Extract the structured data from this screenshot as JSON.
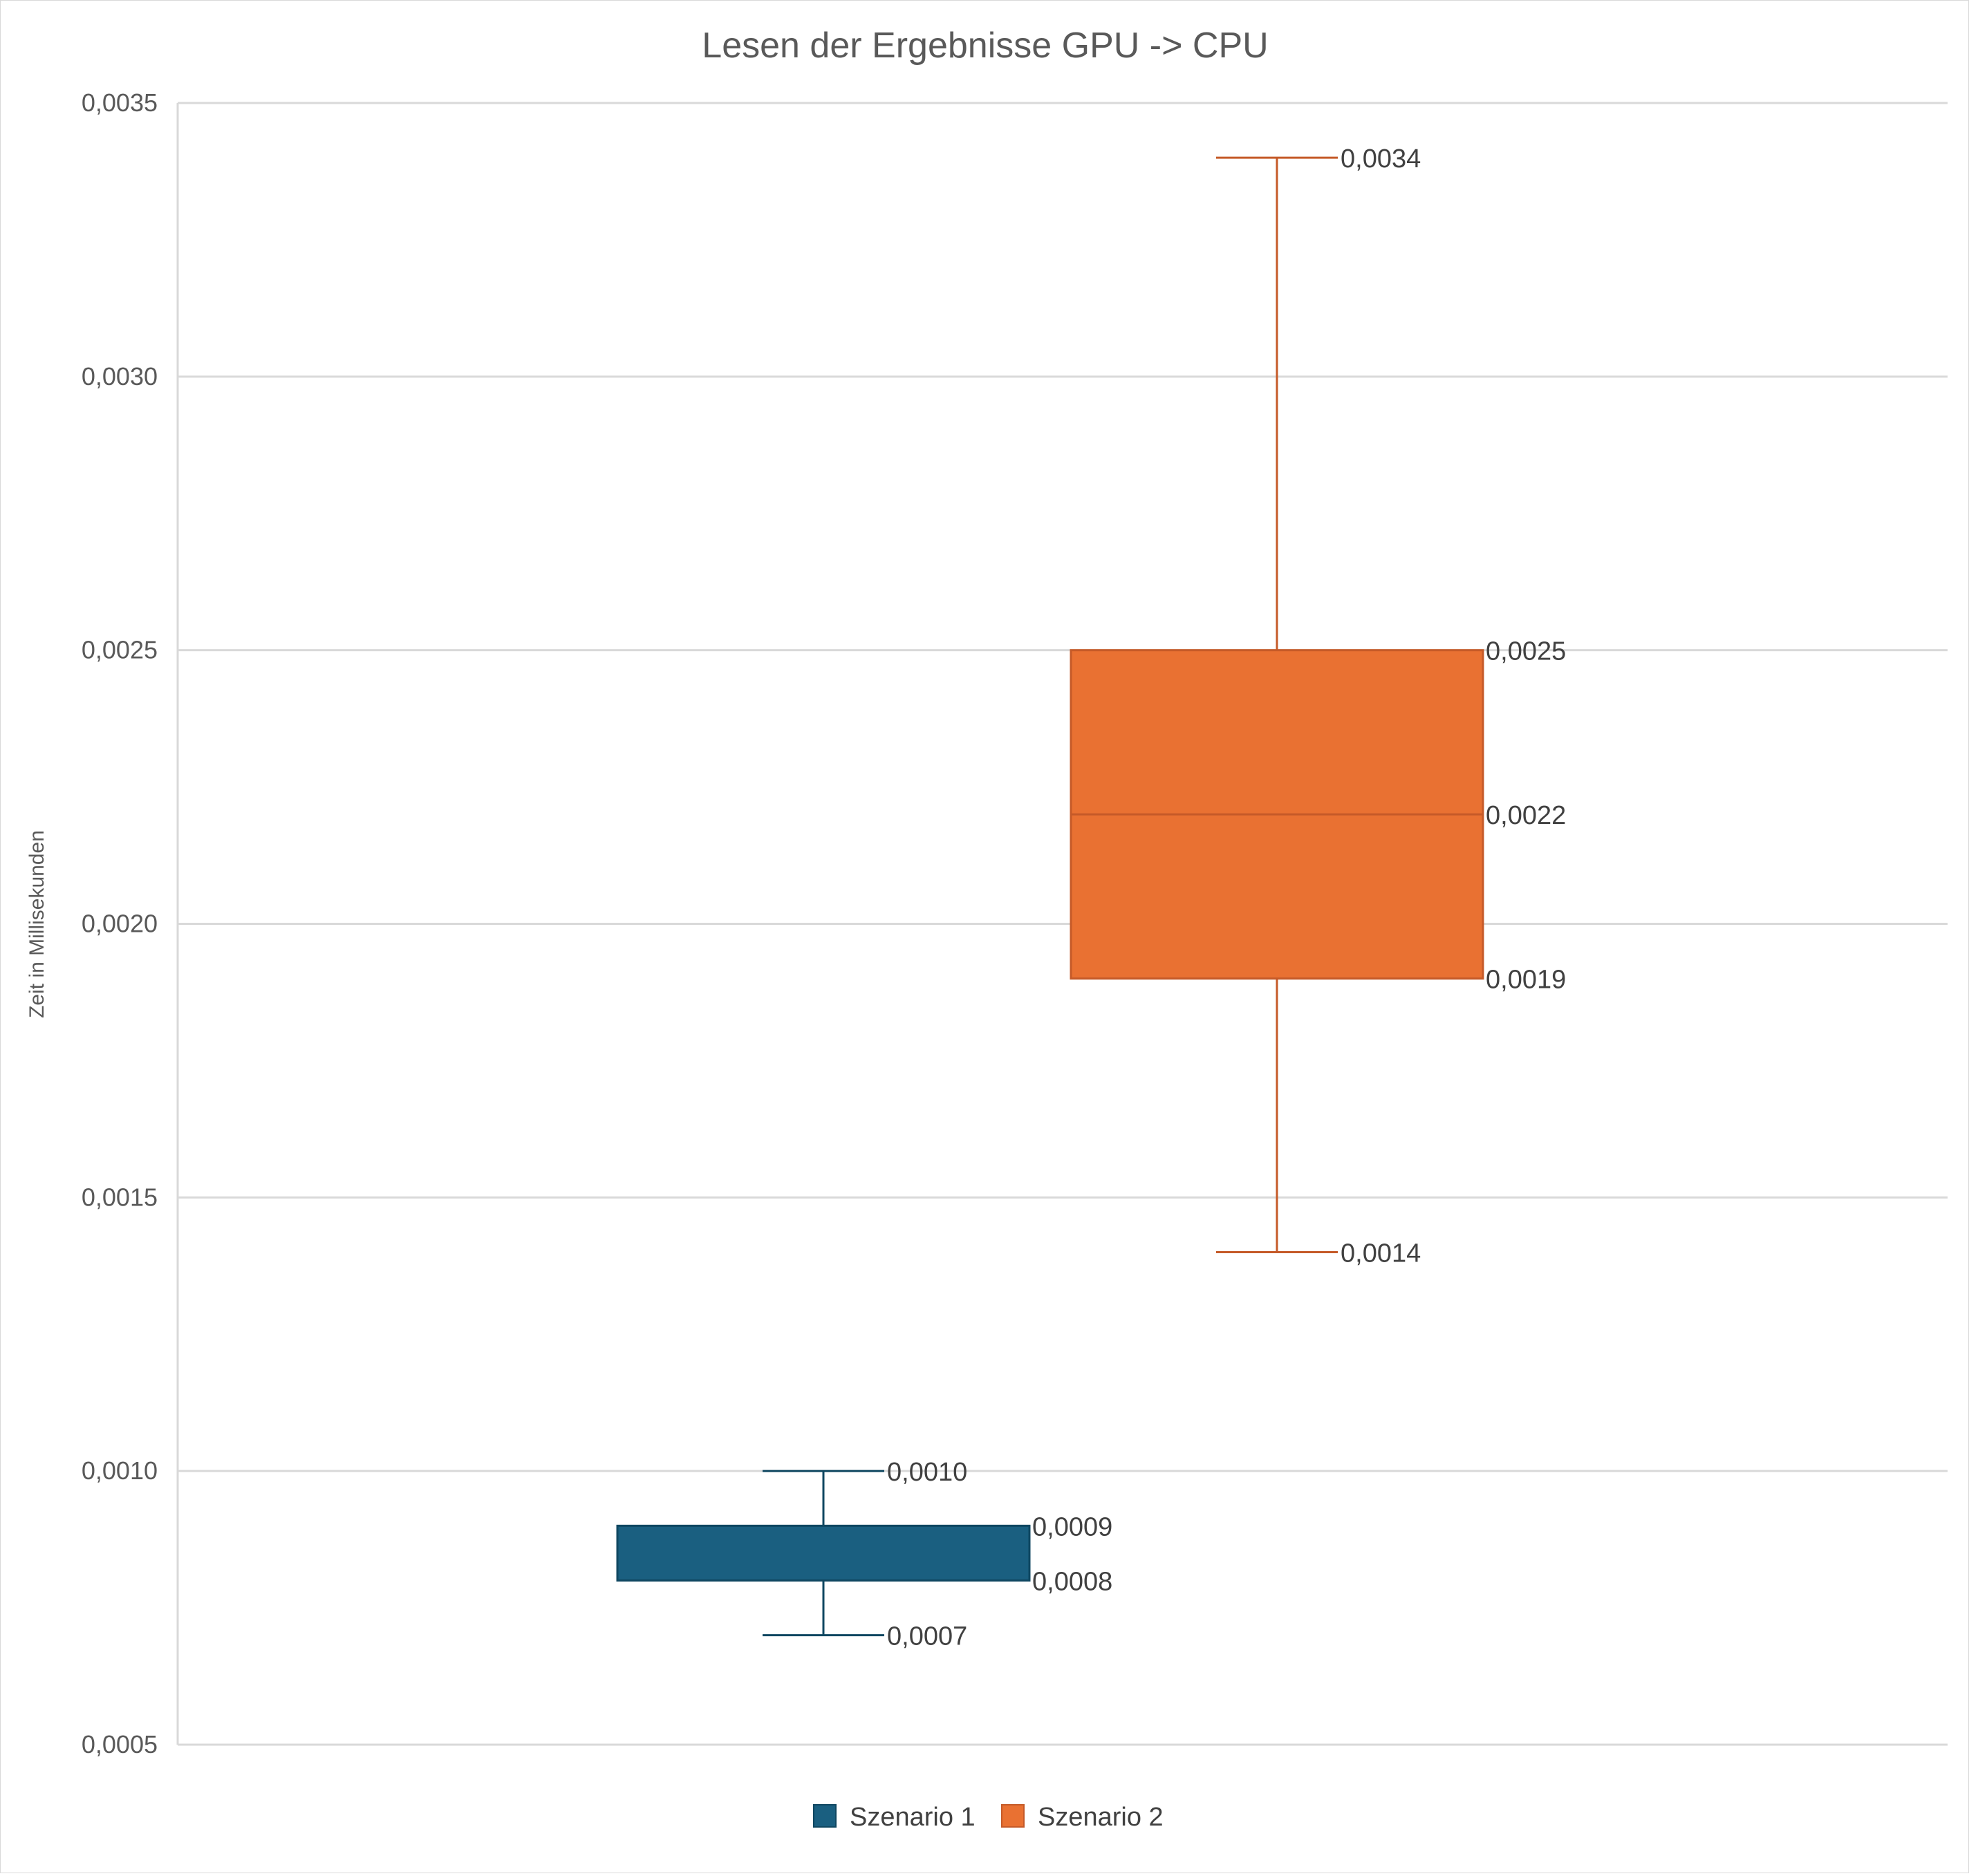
{
  "chart_data": {
    "type": "boxplot",
    "title": "Lesen der Ergebnisse GPU -> CPU",
    "xlabel": "",
    "ylabel": "Zeit in Millisekunden",
    "ylim": [
      0.0005,
      0.0035
    ],
    "yticks": [
      0.0005,
      0.001,
      0.0015,
      0.002,
      0.0025,
      0.003,
      0.0035
    ],
    "ytick_labels": [
      "0,0005",
      "0,0010",
      "0,0015",
      "0,0020",
      "0,0025",
      "0,0030",
      "0,0035"
    ],
    "grid": true,
    "legend_position": "bottom",
    "series": [
      {
        "name": "Szenario 1",
        "color": "#1a5f80",
        "min": 0.0007,
        "q1": 0.0008,
        "median": 0.0008,
        "q3": 0.0009,
        "max": 0.001,
        "labels": {
          "min": "0,0007",
          "q1": "0,0008",
          "q3": "0,0009",
          "max": "0,0010"
        }
      },
      {
        "name": "Szenario 2",
        "color": "#e97132",
        "min": 0.0014,
        "q1": 0.0019,
        "median": 0.0022,
        "q3": 0.0025,
        "max": 0.0034,
        "labels": {
          "min": "0,0014",
          "q1": "0,0019",
          "median": "0,0022",
          "q3": "0,0025",
          "max": "0,0034"
        }
      }
    ]
  }
}
